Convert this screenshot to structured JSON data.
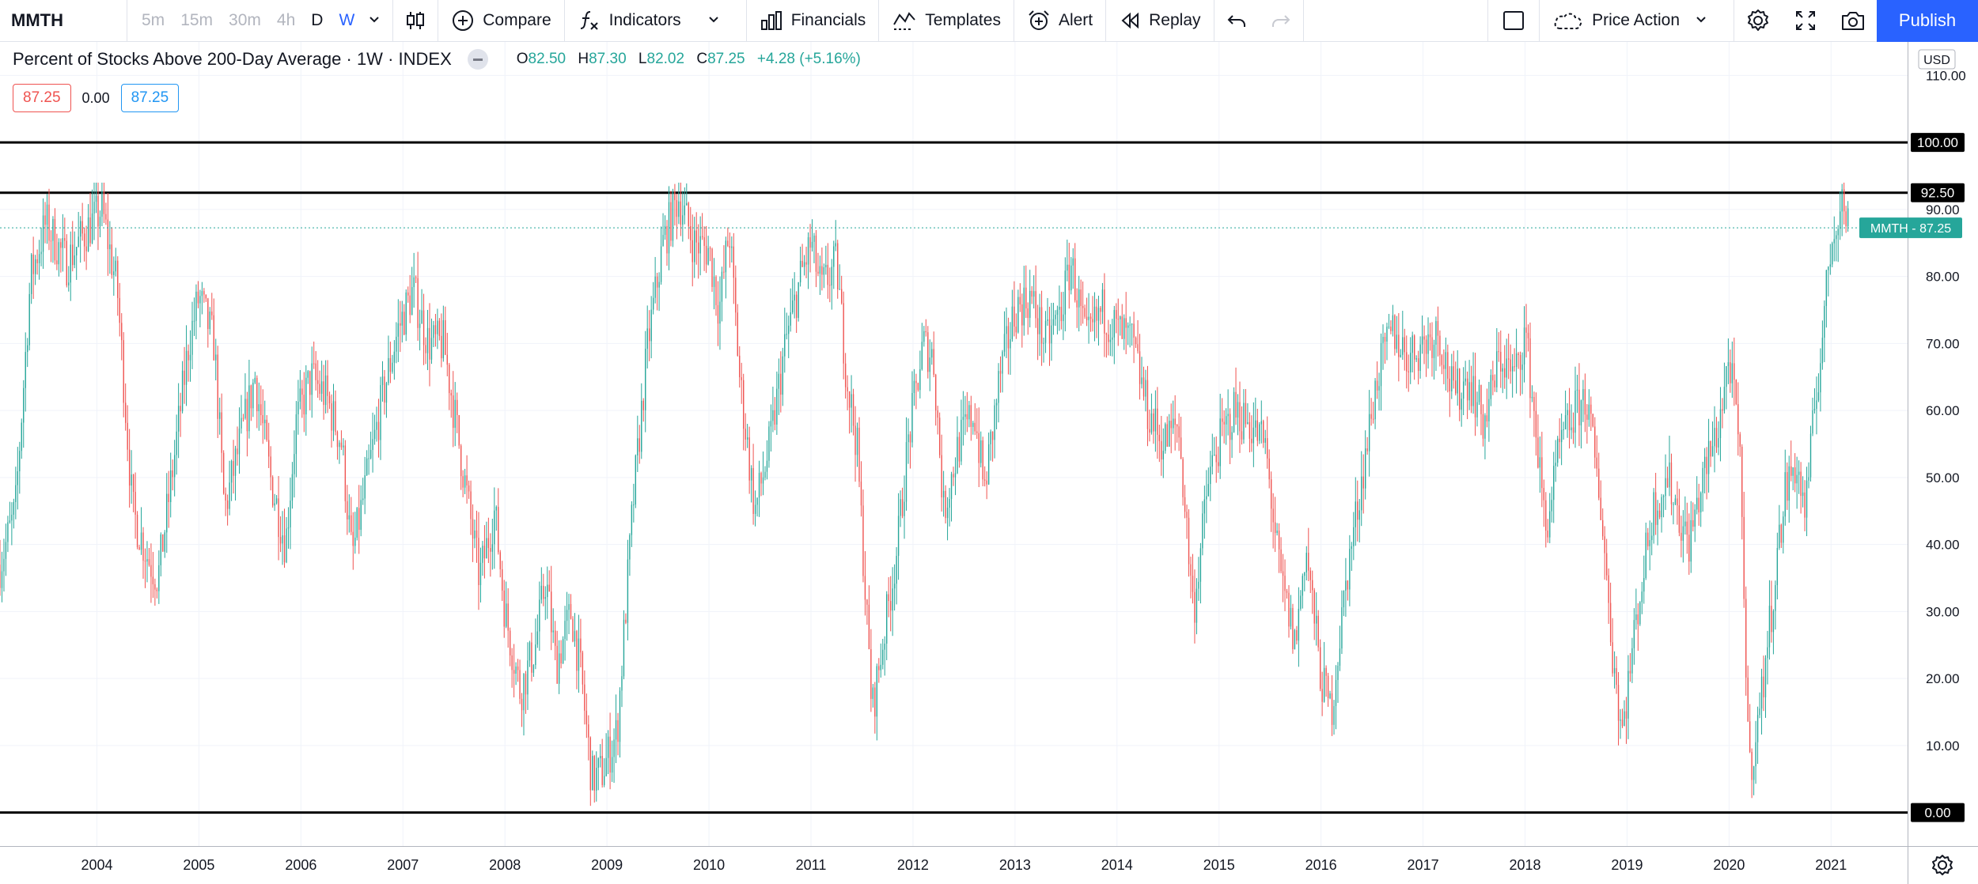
{
  "toolbar": {
    "symbol": "MMTH",
    "intervals": [
      "5m",
      "15m",
      "30m",
      "4h",
      "D",
      "W"
    ],
    "compare_label": "Compare",
    "indicators_label": "Indicators",
    "financials_label": "Financials",
    "templates_label": "Templates",
    "alert_label": "Alert",
    "replay_label": "Replay",
    "layout_label": "Price Action",
    "publish_label": "Publish"
  },
  "legend": {
    "title": "Percent of Stocks Above 200-Day Average · 1W · INDEX",
    "open_label": "O",
    "open": "82.50",
    "high_label": "H",
    "high": "87.30",
    "low_label": "L",
    "low": "82.02",
    "close_label": "C",
    "close": "87.25",
    "change": "+4.28 (+5.16%)",
    "value_red": "87.25",
    "value_plain": "0.00",
    "value_blue": "87.25"
  },
  "colors": {
    "up": "#26a69a",
    "down": "#ef5350",
    "accent": "#2962ff",
    "grid": "#f0f3fa"
  },
  "chart_data": {
    "type": "candlestick",
    "symbol": "MMTH",
    "currency": "USD",
    "ylim": [
      -5,
      115
    ],
    "y_ticks": [
      0,
      10,
      20,
      30,
      40,
      50,
      60,
      70,
      80,
      90,
      100,
      110
    ],
    "y_tick_labels": [
      "0.00",
      "10.00",
      "20.00",
      "30.00",
      "40.00",
      "50.00",
      "60.00",
      "70.00",
      "80.00",
      "90.00",
      "100.00",
      "110.00"
    ],
    "xlim": [
      2003.05,
      2021.75
    ],
    "x_ticks": [
      2004,
      2005,
      2006,
      2007,
      2008,
      2009,
      2010,
      2011,
      2012,
      2013,
      2014,
      2015,
      2016,
      2017,
      2018,
      2019,
      2020,
      2021
    ],
    "x_tick_labels": [
      "2004",
      "2005",
      "2006",
      "2007",
      "2008",
      "2009",
      "2010",
      "2011",
      "2012",
      "2013",
      "2014",
      "2015",
      "2016",
      "2017",
      "2018",
      "2019",
      "2020",
      "2021"
    ],
    "horizontal_lines": [
      {
        "value": 100,
        "label": "100.00"
      },
      {
        "value": 92.5,
        "label": "92.50"
      },
      {
        "value": 0,
        "label": "0.00"
      }
    ],
    "last_price": {
      "value": 87.25,
      "label": "MMTH - 87.25"
    },
    "close_path": [
      [
        2003.05,
        37
      ],
      [
        2003.2,
        45
      ],
      [
        2003.35,
        80
      ],
      [
        2003.5,
        88
      ],
      [
        2003.7,
        82
      ],
      [
        2003.9,
        87
      ],
      [
        2004.05,
        90
      ],
      [
        2004.2,
        78
      ],
      [
        2004.35,
        45
      ],
      [
        2004.5,
        38
      ],
      [
        2004.6,
        35
      ],
      [
        2004.75,
        52
      ],
      [
        2004.9,
        70
      ],
      [
        2005.0,
        77
      ],
      [
        2005.15,
        70
      ],
      [
        2005.25,
        45
      ],
      [
        2005.4,
        55
      ],
      [
        2005.55,
        65
      ],
      [
        2005.7,
        50
      ],
      [
        2005.85,
        40
      ],
      [
        2005.95,
        58
      ],
      [
        2006.1,
        65
      ],
      [
        2006.25,
        62
      ],
      [
        2006.4,
        55
      ],
      [
        2006.5,
        38
      ],
      [
        2006.65,
        50
      ],
      [
        2006.8,
        62
      ],
      [
        2006.95,
        72
      ],
      [
        2007.1,
        78
      ],
      [
        2007.25,
        70
      ],
      [
        2007.4,
        70
      ],
      [
        2007.5,
        60
      ],
      [
        2007.6,
        50
      ],
      [
        2007.75,
        35
      ],
      [
        2007.9,
        45
      ],
      [
        2008.0,
        30
      ],
      [
        2008.15,
        18
      ],
      [
        2008.3,
        25
      ],
      [
        2008.4,
        35
      ],
      [
        2008.5,
        22
      ],
      [
        2008.65,
        30
      ],
      [
        2008.75,
        20
      ],
      [
        2008.85,
        5
      ],
      [
        2008.95,
        6
      ],
      [
        2009.1,
        12
      ],
      [
        2009.25,
        45
      ],
      [
        2009.4,
        70
      ],
      [
        2009.55,
        85
      ],
      [
        2009.7,
        92
      ],
      [
        2009.85,
        85
      ],
      [
        2010.0,
        84
      ],
      [
        2010.1,
        75
      ],
      [
        2010.2,
        87
      ],
      [
        2010.3,
        65
      ],
      [
        2010.45,
        45
      ],
      [
        2010.6,
        55
      ],
      [
        2010.75,
        70
      ],
      [
        2010.9,
        80
      ],
      [
        2011.0,
        85
      ],
      [
        2011.1,
        78
      ],
      [
        2011.25,
        82
      ],
      [
        2011.35,
        65
      ],
      [
        2011.45,
        55
      ],
      [
        2011.6,
        15
      ],
      [
        2011.75,
        30
      ],
      [
        2011.85,
        40
      ],
      [
        2011.95,
        55
      ],
      [
        2012.1,
        70
      ],
      [
        2012.2,
        68
      ],
      [
        2012.3,
        45
      ],
      [
        2012.45,
        55
      ],
      [
        2012.6,
        60
      ],
      [
        2012.7,
        48
      ],
      [
        2012.85,
        65
      ],
      [
        2013.0,
        75
      ],
      [
        2013.15,
        77
      ],
      [
        2013.3,
        70
      ],
      [
        2013.45,
        75
      ],
      [
        2013.55,
        82
      ],
      [
        2013.7,
        70
      ],
      [
        2013.85,
        75
      ],
      [
        2014.0,
        72
      ],
      [
        2014.15,
        70
      ],
      [
        2014.3,
        60
      ],
      [
        2014.45,
        55
      ],
      [
        2014.6,
        58
      ],
      [
        2014.75,
        30
      ],
      [
        2014.9,
        50
      ],
      [
        2015.0,
        55
      ],
      [
        2015.15,
        60
      ],
      [
        2015.3,
        58
      ],
      [
        2015.45,
        55
      ],
      [
        2015.6,
        35
      ],
      [
        2015.75,
        25
      ],
      [
        2015.85,
        40
      ],
      [
        2016.0,
        20
      ],
      [
        2016.1,
        15
      ],
      [
        2016.25,
        35
      ],
      [
        2016.4,
        50
      ],
      [
        2016.55,
        65
      ],
      [
        2016.7,
        72
      ],
      [
        2016.85,
        68
      ],
      [
        2017.0,
        70
      ],
      [
        2017.15,
        72
      ],
      [
        2017.3,
        62
      ],
      [
        2017.45,
        65
      ],
      [
        2017.6,
        58
      ],
      [
        2017.75,
        68
      ],
      [
        2017.9,
        65
      ],
      [
        2018.0,
        72
      ],
      [
        2018.1,
        58
      ],
      [
        2018.2,
        42
      ],
      [
        2018.35,
        55
      ],
      [
        2018.5,
        60
      ],
      [
        2018.6,
        62
      ],
      [
        2018.75,
        45
      ],
      [
        2018.85,
        25
      ],
      [
        2018.95,
        12
      ],
      [
        2019.1,
        30
      ],
      [
        2019.25,
        45
      ],
      [
        2019.4,
        50
      ],
      [
        2019.5,
        45
      ],
      [
        2019.6,
        40
      ],
      [
        2019.75,
        50
      ],
      [
        2019.9,
        58
      ],
      [
        2020.0,
        68
      ],
      [
        2020.1,
        55
      ],
      [
        2020.2,
        6
      ],
      [
        2020.3,
        15
      ],
      [
        2020.45,
        35
      ],
      [
        2020.55,
        48
      ],
      [
        2020.65,
        52
      ],
      [
        2020.75,
        45
      ],
      [
        2020.85,
        62
      ],
      [
        2020.92,
        72
      ],
      [
        2021.0,
        85
      ],
      [
        2021.1,
        92
      ],
      [
        2021.18,
        87.25
      ]
    ]
  }
}
